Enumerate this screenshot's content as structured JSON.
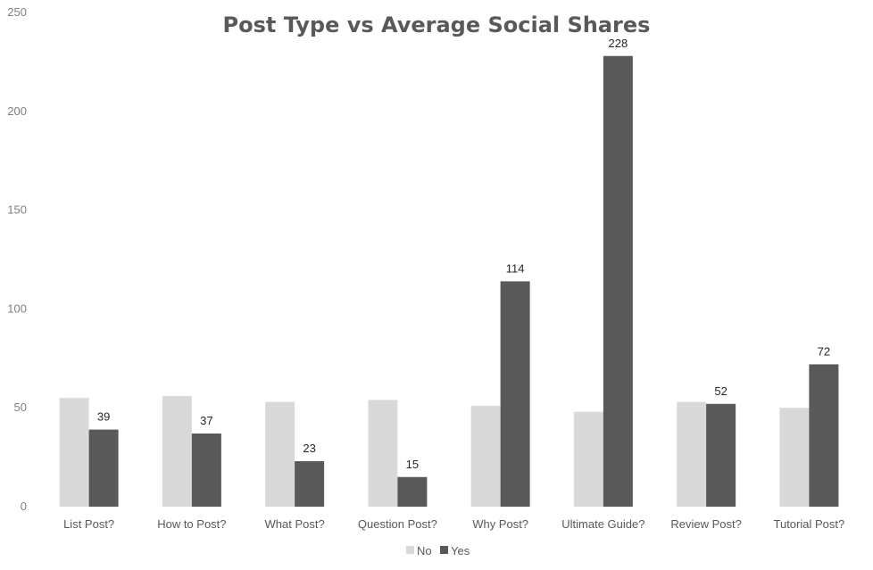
{
  "chart_data": {
    "type": "bar",
    "title": "Post Type vs Average Social Shares",
    "xlabel": "",
    "ylabel": "",
    "ylim": [
      0,
      250
    ],
    "yticks": [
      0,
      50,
      100,
      150,
      200,
      250
    ],
    "grid": false,
    "legend_position": "bottom",
    "categories": [
      "List Post?",
      "How to Post?",
      "What Post?",
      "Question Post?",
      "Why Post?",
      "Ultimate Guide?",
      "Review Post?",
      "Tutorial Post?"
    ],
    "series": [
      {
        "name": "No",
        "color": "#d9d9d9",
        "values": [
          55,
          56,
          53,
          54,
          51,
          48,
          53,
          50
        ],
        "show_labels": false
      },
      {
        "name": "Yes",
        "color": "#595959",
        "values": [
          39,
          37,
          23,
          15,
          114,
          228,
          52,
          72
        ],
        "show_labels": true
      }
    ]
  }
}
